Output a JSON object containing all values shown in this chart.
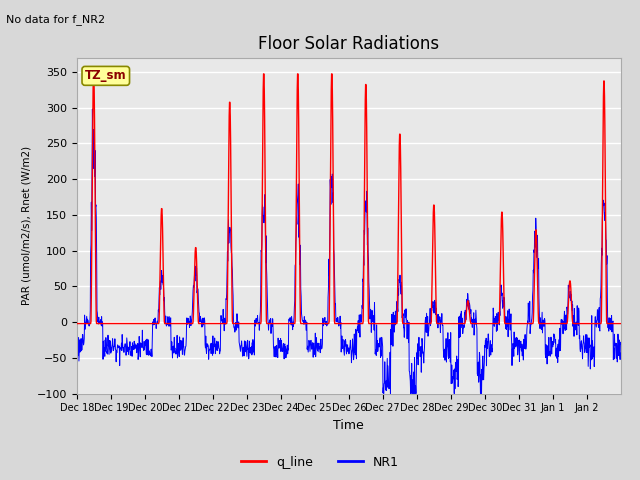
{
  "title": "Floor Solar Radiations",
  "subtitle": "No data for f_NR2",
  "xlabel": "Time",
  "ylabel": "PAR (umol/m2/s), Rnet (W/m2)",
  "ylim": [
    -100,
    370
  ],
  "yticks": [
    -100,
    -50,
    0,
    50,
    100,
    150,
    200,
    250,
    300,
    350
  ],
  "xtick_labels": [
    "Dec 18",
    "Dec 19",
    "Dec 20",
    "Dec 21",
    "Dec 22",
    "Dec 23",
    "Dec 24",
    "Dec 25",
    "Dec 26",
    "Dec 27",
    "Dec 28",
    "Dec 29",
    "Dec 30",
    "Dec 31",
    "Jan 1",
    "Jan 2"
  ],
  "legend_labels": [
    "q_line",
    "NR1"
  ],
  "q_line_color": "red",
  "NR1_color": "blue",
  "bg_color": "#d8d8d8",
  "plot_bg_color": "#e8e8e8",
  "legend_box_color": "#ffff99",
  "legend_box_text": "TZ_sm",
  "legend_box_text_color": "#8b0000",
  "red_peaks": [
    350,
    0,
    160,
    105,
    310,
    350,
    350,
    350,
    335,
    265,
    165,
    30,
    155,
    130,
    58,
    340
  ],
  "blue_peaks": [
    265,
    0,
    65,
    70,
    135,
    170,
    165,
    200,
    160,
    55,
    30,
    30,
    30,
    125,
    40,
    170
  ],
  "n_days": 16,
  "samples_per_day": 96
}
